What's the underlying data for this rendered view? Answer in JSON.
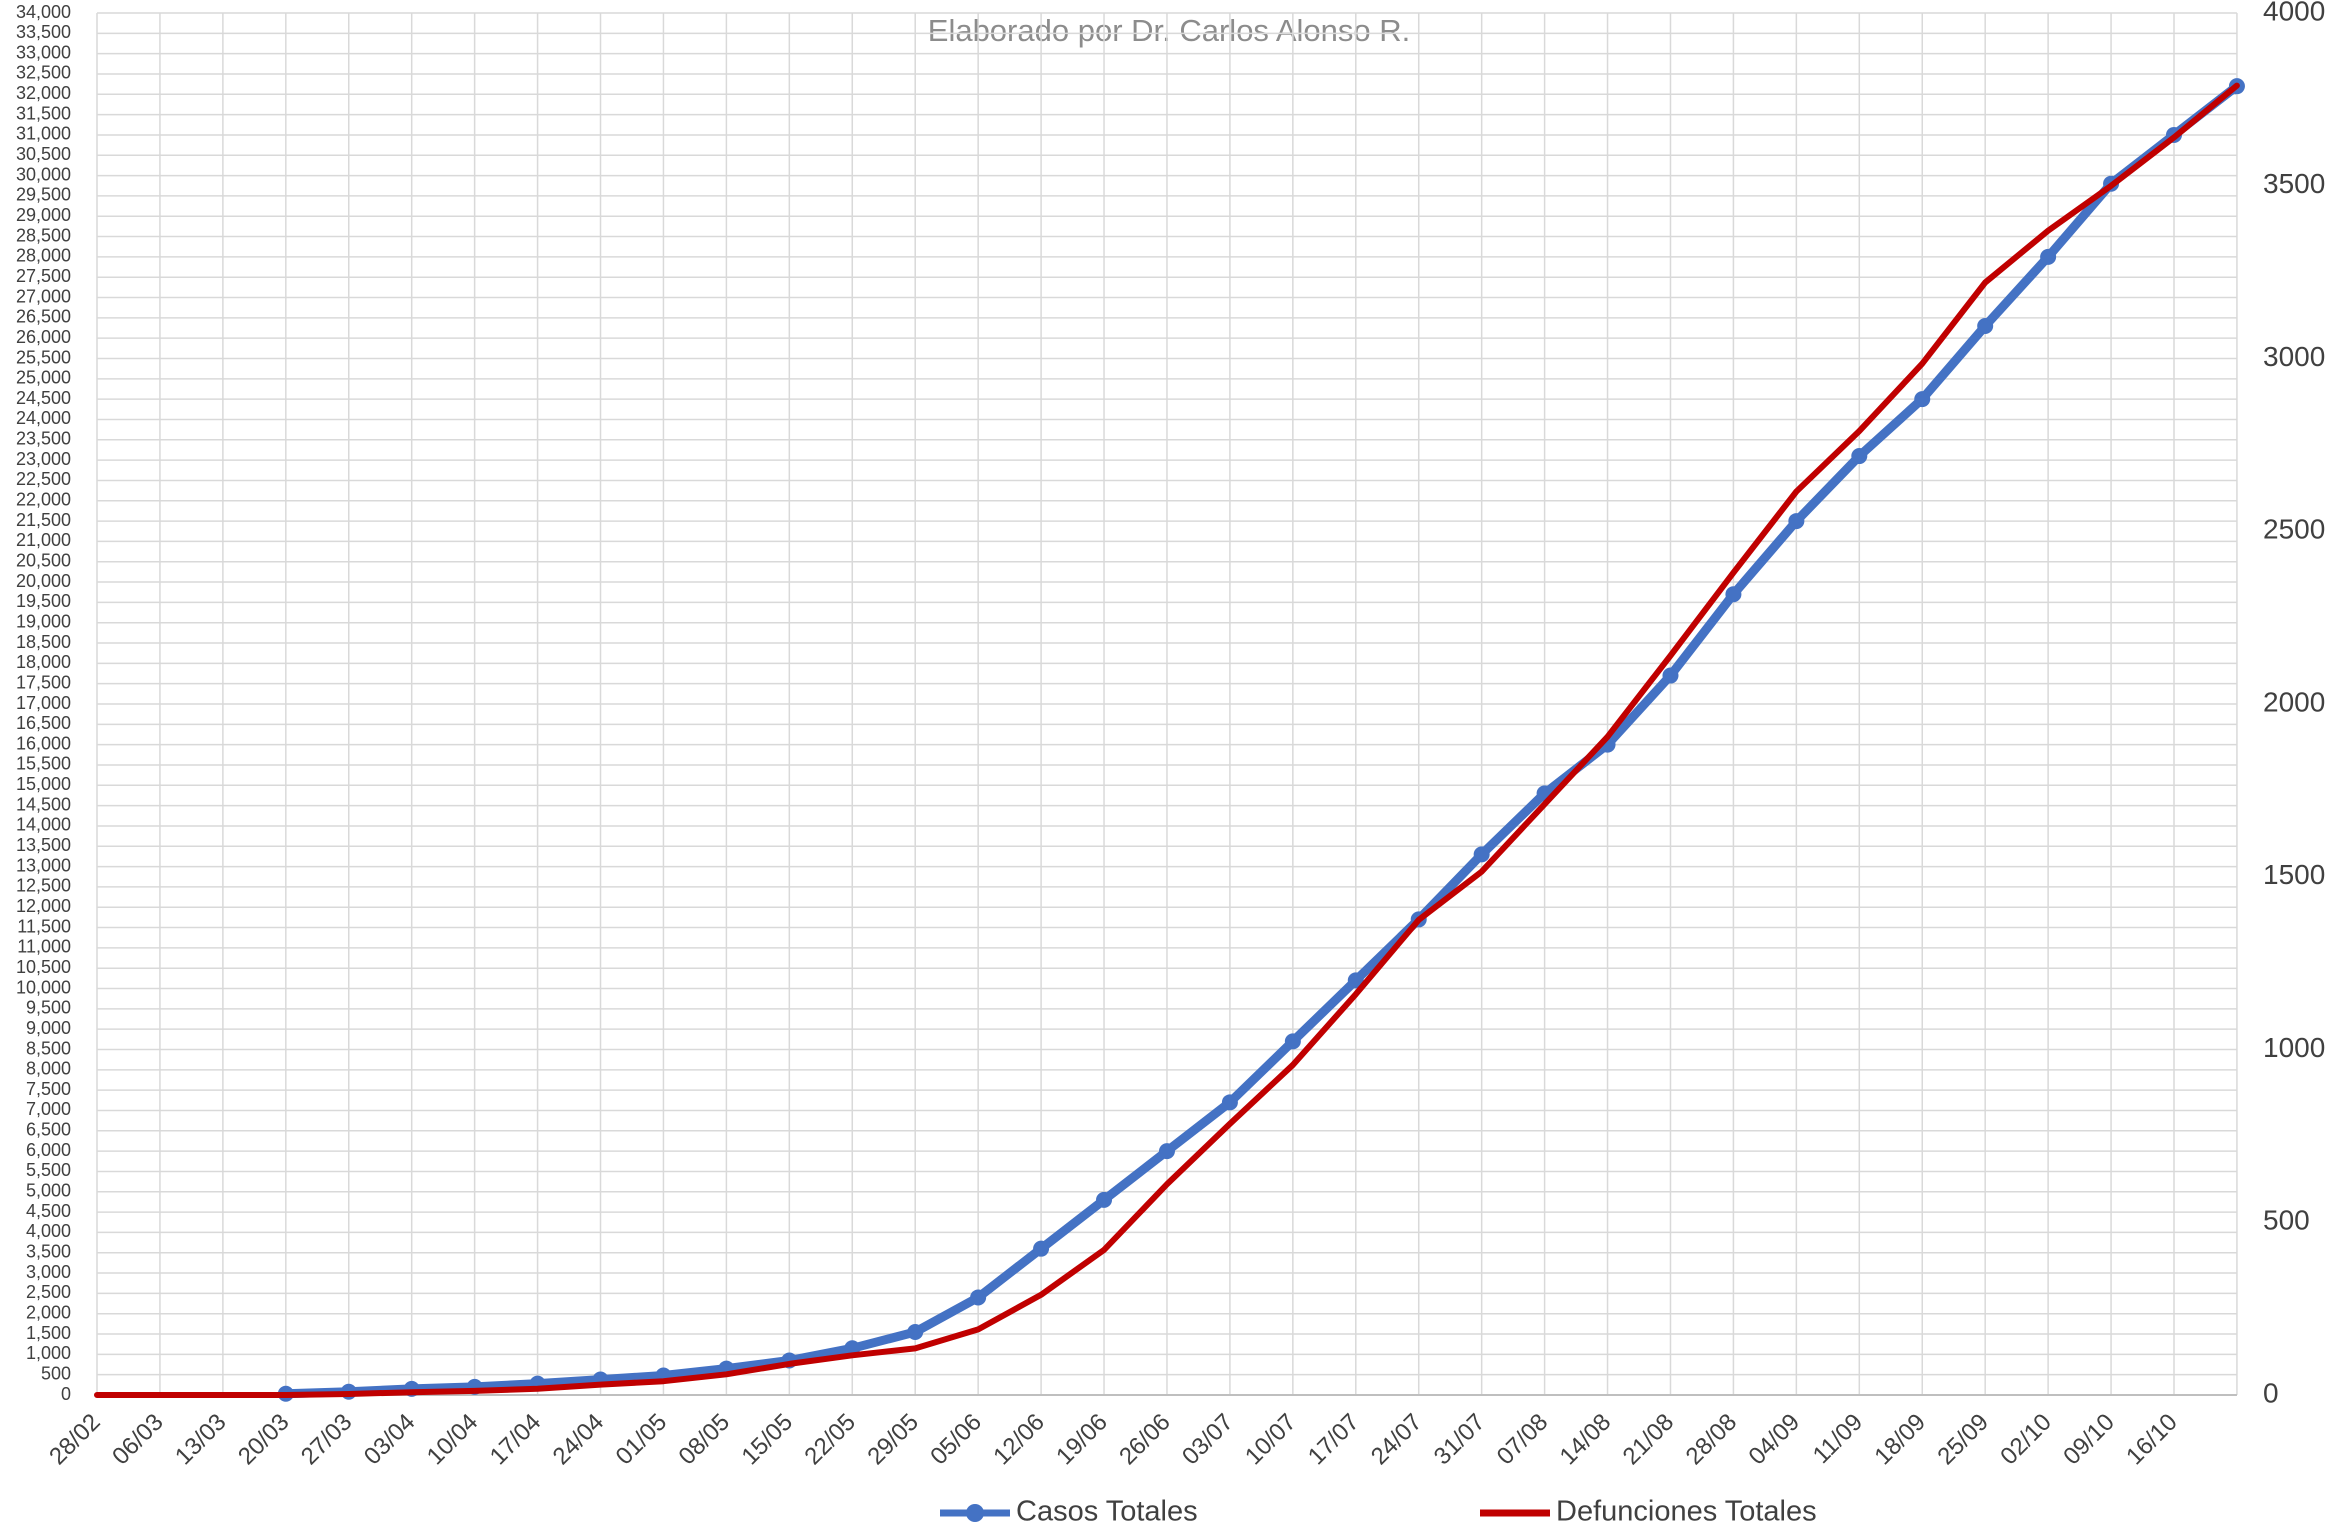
{
  "chart_data": {
    "type": "line",
    "subtitle": "Elaborado por Dr. Carlos Alonso R.",
    "categories": [
      "28/02",
      "06/03",
      "13/03",
      "20/03",
      "27/03",
      "03/04",
      "10/04",
      "17/04",
      "24/04",
      "01/05",
      "08/05",
      "15/05",
      "22/05",
      "29/05",
      "05/06",
      "12/06",
      "19/06",
      "26/06",
      "03/07",
      "10/07",
      "17/07",
      "24/07",
      "31/07",
      "07/08",
      "14/08",
      "21/08",
      "28/08",
      "04/09",
      "11/09",
      "18/09",
      "25/09",
      "02/10",
      "09/10",
      "16/10",
      null
    ],
    "series": [
      {
        "name": "Casos Totales",
        "color": "#4472c4",
        "axis": "y",
        "markers": true,
        "values": [
          null,
          null,
          null,
          30,
          80,
          150,
          200,
          280,
          380,
          480,
          650,
          850,
          1150,
          1550,
          2400,
          3600,
          4800,
          6000,
          7200,
          8700,
          10200,
          11700,
          13300,
          14800,
          16000,
          17700,
          19700,
          21500,
          23100,
          24500,
          26300,
          28000,
          29800,
          31000,
          32200
        ]
      },
      {
        "name": "Defunciones Totales",
        "color": "#c00000",
        "axis": "y2",
        "markers": false,
        "values": [
          0,
          0,
          0,
          0,
          3,
          8,
          12,
          18,
          30,
          40,
          60,
          90,
          115,
          135,
          190,
          290,
          420,
          610,
          785,
          955,
          1160,
          1375,
          1515,
          1710,
          1905,
          2140,
          2380,
          2615,
          2790,
          2985,
          3220,
          3370,
          3500,
          3640,
          3790
        ]
      }
    ],
    "ylim": [
      0,
      34000
    ],
    "yticks": [
      0,
      500,
      {
        "value": 1000,
        "label": "1,000"
      },
      {
        "value": 1500,
        "label": "1,500"
      },
      {
        "value": 2000,
        "label": "2,000"
      },
      {
        "value": 2500,
        "label": "2,500"
      },
      {
        "value": 3000,
        "label": "3,000"
      },
      {
        "value": 3500,
        "label": "3,500"
      },
      {
        "value": 4000,
        "label": "4,000"
      },
      {
        "value": 4500,
        "label": "4,500"
      },
      {
        "value": 5000,
        "label": "5,000"
      },
      {
        "value": 5500,
        "label": "5,500"
      },
      {
        "value": 6000,
        "label": "6,000"
      },
      {
        "value": 6500,
        "label": "6,500"
      },
      {
        "value": 7000,
        "label": "7,000"
      },
      {
        "value": 7500,
        "label": "7,500"
      },
      {
        "value": 8000,
        "label": "8,000"
      },
      {
        "value": 8500,
        "label": "8,500"
      },
      {
        "value": 9000,
        "label": "9,000"
      },
      {
        "value": 9500,
        "label": "9,500"
      },
      {
        "value": 10000,
        "label": "10,000"
      },
      {
        "value": 10500,
        "label": "10,500"
      },
      {
        "value": 11000,
        "label": "11,000"
      },
      {
        "value": 11500,
        "label": "11,500"
      },
      {
        "value": 12000,
        "label": "12,000"
      },
      {
        "value": 12500,
        "label": "12,500"
      },
      {
        "value": 13000,
        "label": "13,000"
      },
      {
        "value": 13500,
        "label": "13,500"
      },
      {
        "value": 14000,
        "label": "14,000"
      },
      {
        "value": 14500,
        "label": "14,500"
      },
      {
        "value": 15000,
        "label": "15,000"
      },
      {
        "value": 15500,
        "label": "15,500"
      },
      {
        "value": 16000,
        "label": "16,000"
      },
      {
        "value": 16500,
        "label": "16,500"
      },
      {
        "value": 17000,
        "label": "17,000"
      },
      {
        "value": 17500,
        "label": "17,500"
      },
      {
        "value": 18000,
        "label": "18,000"
      },
      {
        "value": 18500,
        "label": "18,500"
      },
      {
        "value": 19000,
        "label": "19,000"
      },
      {
        "value": 19500,
        "label": "19,500"
      },
      {
        "value": 20000,
        "label": "20,000"
      },
      {
        "value": 20500,
        "label": "20,500"
      },
      {
        "value": 21000,
        "label": "21,000"
      },
      {
        "value": 21500,
        "label": "21,500"
      },
      {
        "value": 22000,
        "label": "22,000"
      },
      {
        "value": 22500,
        "label": "22,500"
      },
      {
        "value": 23000,
        "label": "23,000"
      },
      {
        "value": 23500,
        "label": "23,500"
      },
      {
        "value": 24000,
        "label": "24,000"
      },
      {
        "value": 24500,
        "label": "24,500"
      },
      {
        "value": 25000,
        "label": "25,000"
      },
      {
        "value": 25500,
        "label": "25,500"
      },
      {
        "value": 26000,
        "label": "26,000"
      },
      {
        "value": 26500,
        "label": "26,500"
      },
      {
        "value": 27000,
        "label": "27,000"
      },
      {
        "value": 27500,
        "label": "27,500"
      },
      {
        "value": 28000,
        "label": "28,000"
      },
      {
        "value": 28500,
        "label": "28,500"
      },
      {
        "value": 29000,
        "label": "29,000"
      },
      {
        "value": 29500,
        "label": "29,500"
      },
      {
        "value": 30000,
        "label": "30,000"
      },
      {
        "value": 30500,
        "label": "30,500"
      },
      {
        "value": 31000,
        "label": "31,000"
      },
      {
        "value": 31500,
        "label": "31,500"
      },
      {
        "value": 32000,
        "label": "32,000"
      },
      {
        "value": 32500,
        "label": "32,500"
      },
      {
        "value": 33000,
        "label": "33,000"
      },
      {
        "value": 33500,
        "label": "33,500"
      },
      {
        "value": 34000,
        "label": "34,000"
      }
    ],
    "y2lim": [
      0,
      4000
    ],
    "y2ticks": [
      0,
      500,
      1000,
      1500,
      2000,
      2500,
      3000,
      3500,
      4000
    ],
    "grid": true,
    "legend": "bottom"
  }
}
